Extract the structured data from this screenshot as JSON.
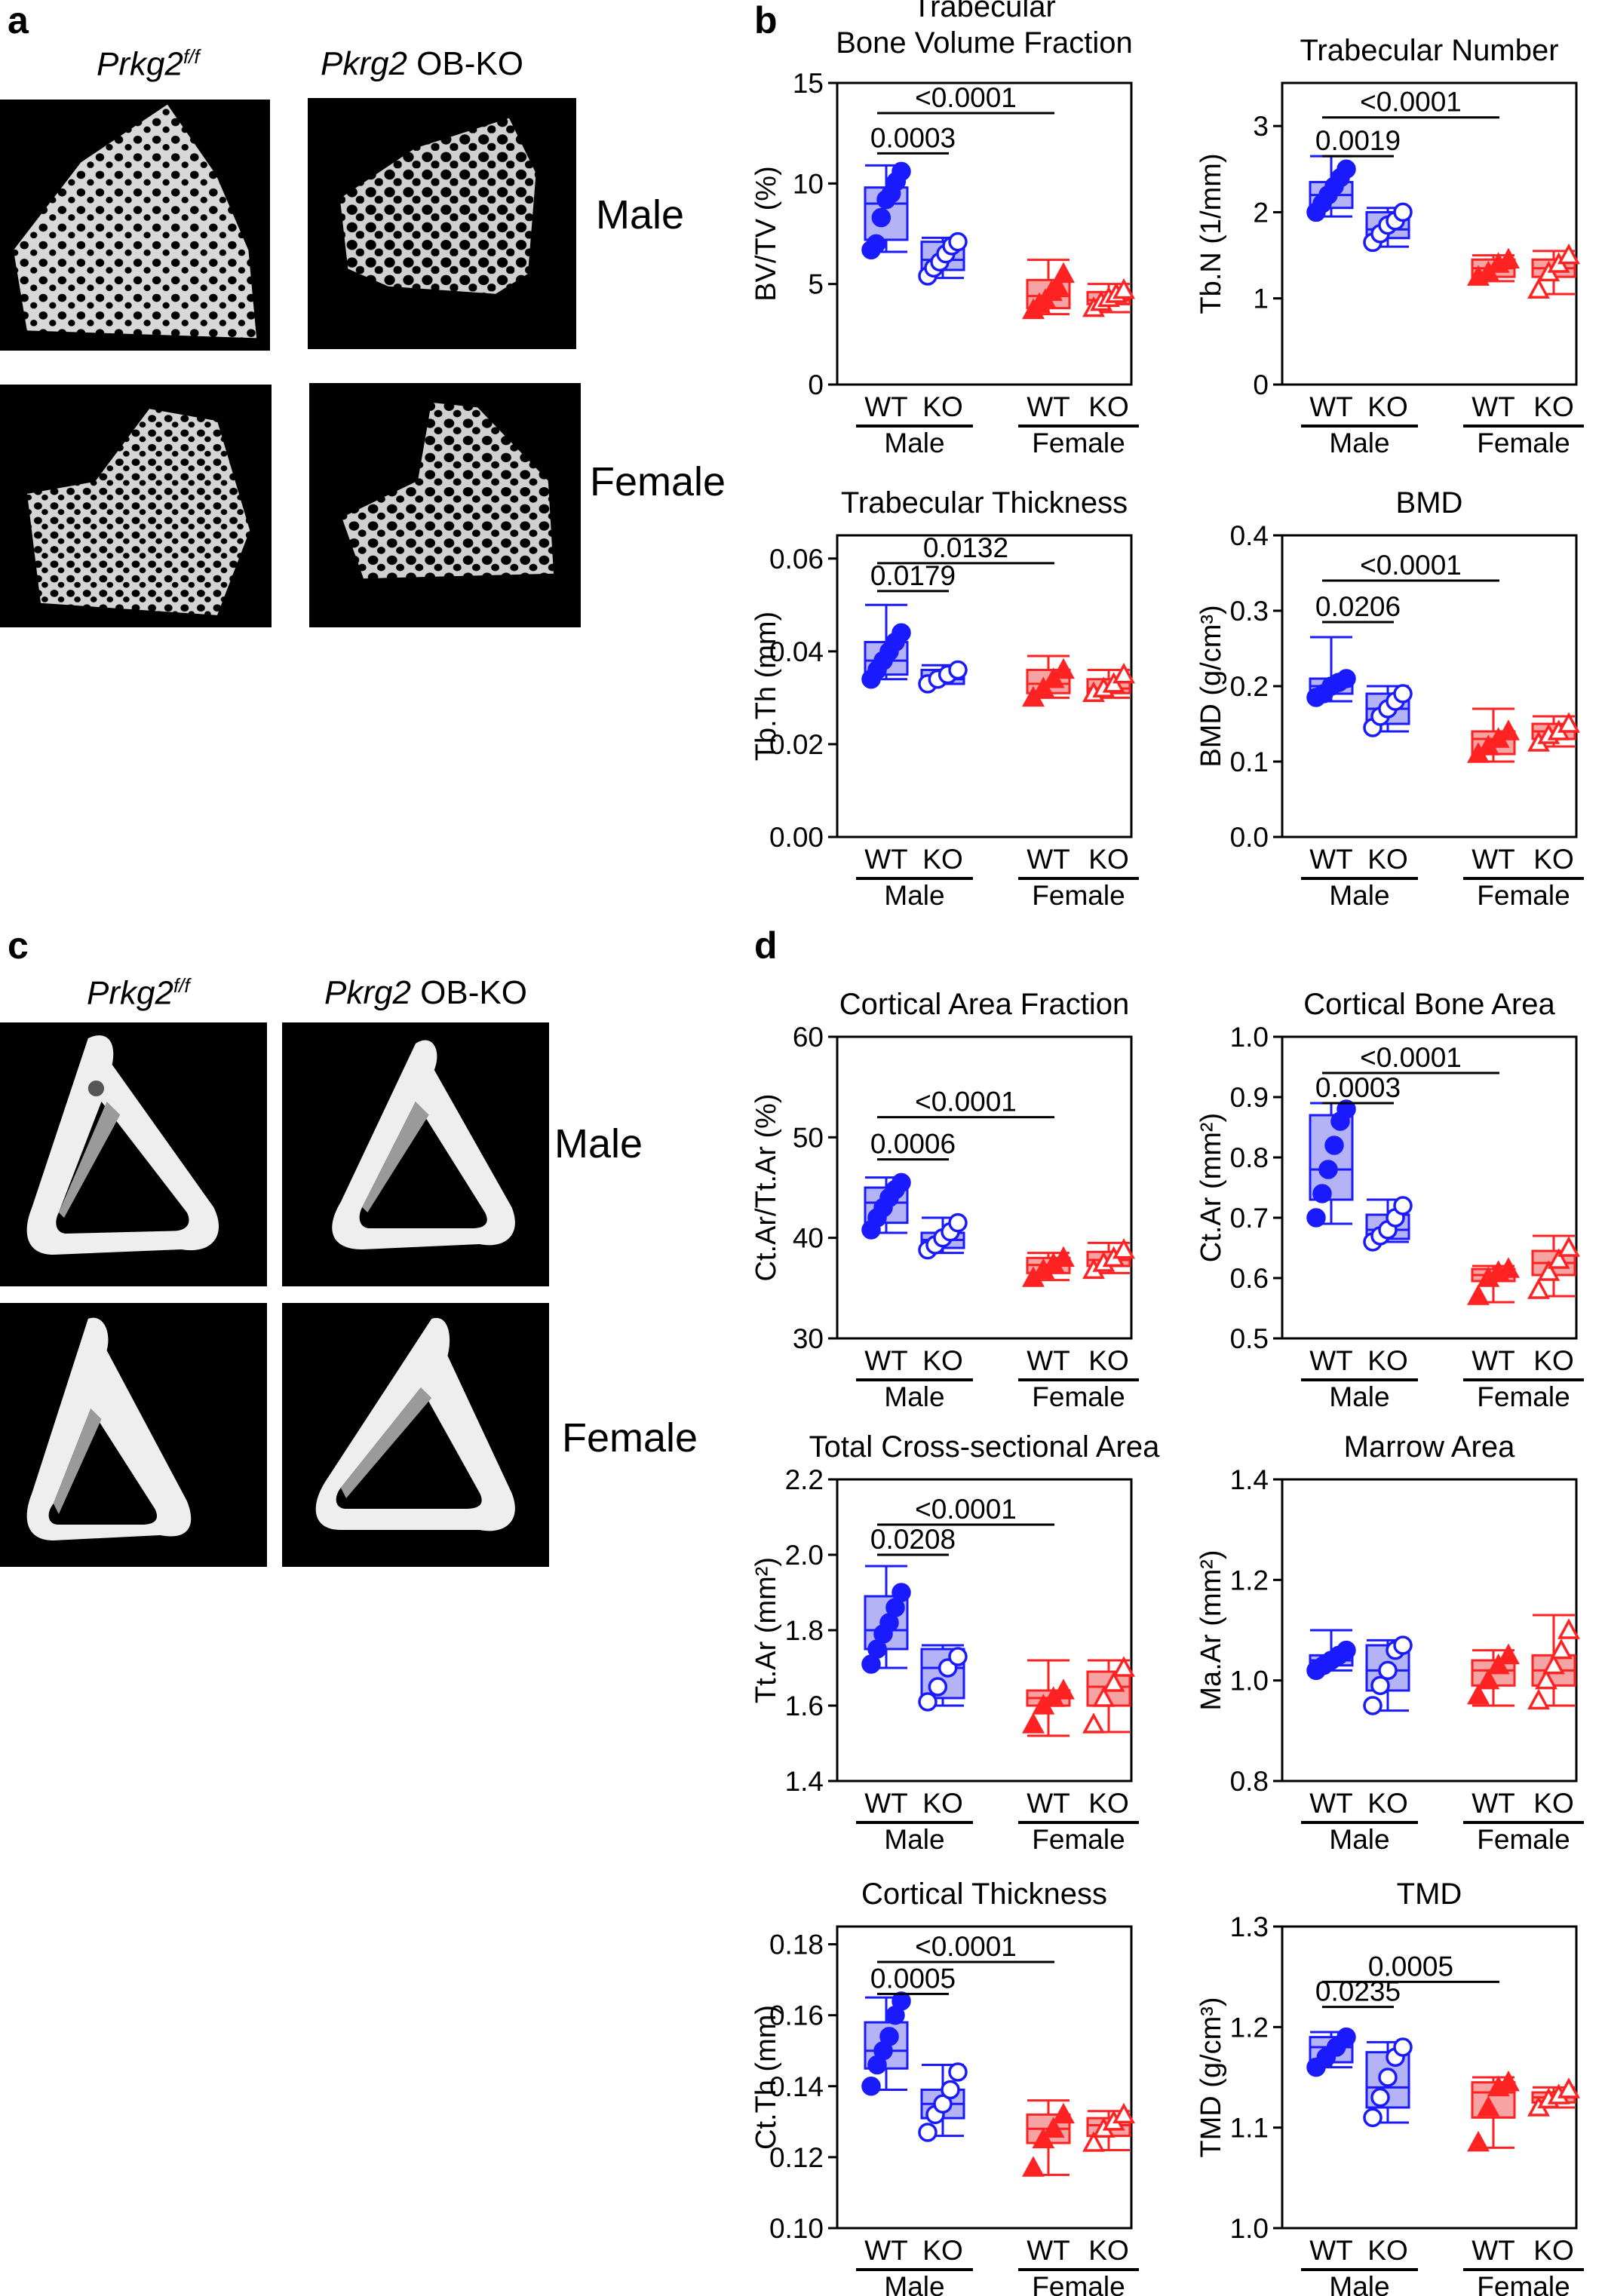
{
  "panels": {
    "a": "a",
    "b": "b",
    "c": "c",
    "d": "d"
  },
  "images": {
    "wt_label_main": "Prkg2",
    "wt_label_sup": "f/f",
    "ko_label_gene": "Pkrg2",
    "ko_label_rest": " OB-KO",
    "male": "Male",
    "female": "Female"
  },
  "groups": {
    "wt": "WT",
    "ko": "KO",
    "male": "Male",
    "female": "Female"
  },
  "colors": {
    "male": "#1a1aff",
    "male_fill": "#b3b3f5",
    "female": "#ff2222",
    "female_fill": "#f5a3a3"
  },
  "chart_data": [
    {
      "id": "bvtv",
      "type": "box",
      "title": [
        "Trabecular",
        "Bone Volume Fraction"
      ],
      "ylabel": "BV/TV (%)",
      "ylim": [
        0,
        15
      ],
      "yticks": [
        "0",
        "5",
        "10",
        "15"
      ],
      "ytick_values": [
        0,
        5,
        10,
        15
      ],
      "groups": [
        {
          "name": "Male WT",
          "min": 6.6,
          "q1": 7.2,
          "median": 9.0,
          "q3": 9.8,
          "max": 10.9,
          "points": [
            6.7,
            7.0,
            8.3,
            9.2,
            9.5,
            10.1,
            10.6
          ]
        },
        {
          "name": "Male KO",
          "min": 5.3,
          "q1": 5.7,
          "median": 6.2,
          "q3": 7.1,
          "max": 7.3,
          "points": [
            5.4,
            5.8,
            6.1,
            6.5,
            6.9,
            7.1
          ]
        },
        {
          "name": "Female WT",
          "min": 3.5,
          "q1": 3.8,
          "median": 4.4,
          "q3": 5.2,
          "max": 6.2,
          "points": [
            3.7,
            4.0,
            4.2,
            4.6,
            4.9,
            5.5
          ]
        },
        {
          "name": "Female KO",
          "min": 3.6,
          "q1": 4.0,
          "median": 4.2,
          "q3": 4.6,
          "max": 5.0,
          "points": [
            3.8,
            4.1,
            4.3,
            4.5,
            4.7
          ]
        }
      ],
      "comparisons": [
        {
          "label": "<0.0001",
          "from": 0,
          "to": 2,
          "y": 13.5
        },
        {
          "label": "0.0003",
          "from": 0,
          "to": 1,
          "y": 11.5
        }
      ]
    },
    {
      "id": "tbn",
      "type": "box",
      "title": [
        "Trabecular Number"
      ],
      "ylabel": "Tb.N (1/mm)",
      "ylim": [
        0,
        3.5
      ],
      "yticks": [
        "0",
        "1",
        "2",
        "3"
      ],
      "ytick_values": [
        0,
        1,
        2,
        3
      ],
      "groups": [
        {
          "name": "Male WT",
          "min": 1.95,
          "q1": 2.05,
          "median": 2.2,
          "q3": 2.35,
          "max": 2.65,
          "points": [
            2.0,
            2.1,
            2.2,
            2.3,
            2.4,
            2.5
          ]
        },
        {
          "name": "Male KO",
          "min": 1.6,
          "q1": 1.7,
          "median": 1.8,
          "q3": 2.0,
          "max": 2.05,
          "points": [
            1.65,
            1.75,
            1.85,
            1.9,
            2.0
          ]
        },
        {
          "name": "Female WT",
          "min": 1.2,
          "q1": 1.25,
          "median": 1.35,
          "q3": 1.45,
          "max": 1.5,
          "points": [
            1.25,
            1.3,
            1.4,
            1.45
          ]
        },
        {
          "name": "Female KO",
          "min": 1.05,
          "q1": 1.25,
          "median": 1.35,
          "q3": 1.45,
          "max": 1.55,
          "points": [
            1.1,
            1.3,
            1.4,
            1.5
          ]
        }
      ],
      "comparisons": [
        {
          "label": "<0.0001",
          "from": 0,
          "to": 2,
          "y": 3.1
        },
        {
          "label": "0.0019",
          "from": 0,
          "to": 1,
          "y": 2.65
        }
      ]
    },
    {
      "id": "tbth",
      "type": "box",
      "title": [
        "Trabecular Thickness"
      ],
      "ylabel": "Tb.Th (mm)",
      "ylim": [
        0,
        0.065
      ],
      "yticks": [
        "0.00",
        "0.02",
        "0.04",
        "0.06"
      ],
      "ytick_values": [
        0,
        0.02,
        0.04,
        0.06
      ],
      "groups": [
        {
          "name": "Male WT",
          "min": 0.034,
          "q1": 0.035,
          "median": 0.038,
          "q3": 0.042,
          "max": 0.05,
          "points": [
            0.034,
            0.036,
            0.038,
            0.04,
            0.042,
            0.044
          ]
        },
        {
          "name": "Male KO",
          "min": 0.033,
          "q1": 0.033,
          "median": 0.034,
          "q3": 0.036,
          "max": 0.037,
          "points": [
            0.033,
            0.034,
            0.035,
            0.036
          ]
        },
        {
          "name": "Female WT",
          "min": 0.03,
          "q1": 0.031,
          "median": 0.033,
          "q3": 0.036,
          "max": 0.039,
          "points": [
            0.03,
            0.032,
            0.034,
            0.036
          ]
        },
        {
          "name": "Female KO",
          "min": 0.03,
          "q1": 0.031,
          "median": 0.032,
          "q3": 0.034,
          "max": 0.036,
          "points": [
            0.031,
            0.032,
            0.033,
            0.035
          ]
        }
      ],
      "comparisons": [
        {
          "label": "0.0132",
          "from": 0,
          "to": 2,
          "y": 0.059
        },
        {
          "label": "0.0179",
          "from": 0,
          "to": 1,
          "y": 0.053
        }
      ]
    },
    {
      "id": "bmd",
      "type": "box",
      "title": [
        "BMD"
      ],
      "ylabel": "BMD (g/cm³)",
      "ylim": [
        0,
        0.4
      ],
      "yticks": [
        "0.0",
        "0.1",
        "0.2",
        "0.3",
        "0.4"
      ],
      "ytick_values": [
        0,
        0.1,
        0.2,
        0.3,
        0.4
      ],
      "groups": [
        {
          "name": "Male WT",
          "min": 0.18,
          "q1": 0.19,
          "median": 0.2,
          "q3": 0.21,
          "max": 0.265,
          "points": [
            0.185,
            0.19,
            0.2,
            0.205,
            0.21
          ]
        },
        {
          "name": "Male KO",
          "min": 0.14,
          "q1": 0.15,
          "median": 0.17,
          "q3": 0.19,
          "max": 0.2,
          "points": [
            0.145,
            0.16,
            0.17,
            0.18,
            0.19
          ]
        },
        {
          "name": "Female WT",
          "min": 0.1,
          "q1": 0.11,
          "median": 0.13,
          "q3": 0.14,
          "max": 0.17,
          "points": [
            0.11,
            0.12,
            0.13,
            0.14
          ]
        },
        {
          "name": "Female KO",
          "min": 0.12,
          "q1": 0.13,
          "median": 0.14,
          "q3": 0.15,
          "max": 0.16,
          "points": [
            0.125,
            0.135,
            0.14,
            0.15
          ]
        }
      ],
      "comparisons": [
        {
          "label": "<0.0001",
          "from": 0,
          "to": 2,
          "y": 0.34
        },
        {
          "label": "0.0206",
          "from": 0,
          "to": 1,
          "y": 0.285
        }
      ]
    },
    {
      "id": "ctarfrac",
      "type": "box",
      "title": [
        "Cortical Area Fraction"
      ],
      "ylabel": "Ct.Ar/Tt.Ar (%)",
      "ylim": [
        30,
        60
      ],
      "yticks": [
        "30",
        "40",
        "50",
        "60"
      ],
      "ytick_values": [
        30,
        40,
        50,
        60
      ],
      "groups": [
        {
          "name": "Male WT",
          "min": 40.5,
          "q1": 41.5,
          "median": 43.5,
          "q3": 45.0,
          "max": 46.0,
          "points": [
            40.8,
            42.0,
            43.0,
            44.0,
            44.8,
            45.5
          ]
        },
        {
          "name": "Male KO",
          "min": 38.5,
          "q1": 39.0,
          "median": 39.8,
          "q3": 40.5,
          "max": 42.0,
          "points": [
            38.8,
            39.3,
            40.0,
            40.6,
            41.5
          ]
        },
        {
          "name": "Female WT",
          "min": 35.8,
          "q1": 36.5,
          "median": 37.3,
          "q3": 38.0,
          "max": 38.5,
          "points": [
            36.0,
            36.8,
            37.4,
            38.0
          ]
        },
        {
          "name": "Female KO",
          "min": 36.5,
          "q1": 37.2,
          "median": 37.8,
          "q3": 38.6,
          "max": 39.5,
          "points": [
            36.8,
            37.5,
            38.0,
            38.8
          ]
        }
      ],
      "comparisons": [
        {
          "label": "<0.0001",
          "from": 0,
          "to": 2,
          "y": 52.0
        },
        {
          "label": "0.0006",
          "from": 0,
          "to": 1,
          "y": 47.8
        }
      ]
    },
    {
      "id": "ctar",
      "type": "box",
      "title": [
        "Cortical Bone Area"
      ],
      "ylabel": "Ct.Ar (mm²)",
      "ylim": [
        0.5,
        1.0
      ],
      "yticks": [
        "0.5",
        "0.6",
        "0.7",
        "0.8",
        "0.9",
        "1.0"
      ],
      "ytick_values": [
        0.5,
        0.6,
        0.7,
        0.8,
        0.9,
        1.0
      ],
      "groups": [
        {
          "name": "Male WT",
          "min": 0.69,
          "q1": 0.73,
          "median": 0.78,
          "q3": 0.87,
          "max": 0.89,
          "points": [
            0.7,
            0.74,
            0.78,
            0.82,
            0.86,
            0.88
          ]
        },
        {
          "name": "Male KO",
          "min": 0.66,
          "q1": 0.665,
          "median": 0.68,
          "q3": 0.705,
          "max": 0.73,
          "points": [
            0.66,
            0.67,
            0.68,
            0.7,
            0.72
          ]
        },
        {
          "name": "Female WT",
          "min": 0.56,
          "q1": 0.595,
          "median": 0.605,
          "q3": 0.615,
          "max": 0.62,
          "points": [
            0.57,
            0.6,
            0.61,
            0.615
          ]
        },
        {
          "name": "Female KO",
          "min": 0.57,
          "q1": 0.605,
          "median": 0.625,
          "q3": 0.645,
          "max": 0.67,
          "points": [
            0.58,
            0.61,
            0.63,
            0.65
          ]
        }
      ],
      "comparisons": [
        {
          "label": "<0.0001",
          "from": 0,
          "to": 2,
          "y": 0.94
        },
        {
          "label": "0.0003",
          "from": 0,
          "to": 1,
          "y": 0.89
        }
      ]
    },
    {
      "id": "ttar",
      "type": "box",
      "title": [
        "Total Cross-sectional Area"
      ],
      "ylabel": "Tt.Ar (mm²)",
      "ylim": [
        1.4,
        2.2
      ],
      "yticks": [
        "1.4",
        "1.6",
        "1.8",
        "2.0",
        "2.2"
      ],
      "ytick_values": [
        1.4,
        1.6,
        1.8,
        2.0,
        2.2
      ],
      "groups": [
        {
          "name": "Male WT",
          "min": 1.7,
          "q1": 1.75,
          "median": 1.8,
          "q3": 1.89,
          "max": 1.97,
          "points": [
            1.71,
            1.75,
            1.79,
            1.82,
            1.86,
            1.9
          ]
        },
        {
          "name": "Male KO",
          "min": 1.6,
          "q1": 1.62,
          "median": 1.7,
          "q3": 1.75,
          "max": 1.76,
          "points": [
            1.61,
            1.65,
            1.7,
            1.73
          ]
        },
        {
          "name": "Female WT",
          "min": 1.52,
          "q1": 1.6,
          "median": 1.62,
          "q3": 1.64,
          "max": 1.72,
          "points": [
            1.55,
            1.6,
            1.62,
            1.64
          ]
        },
        {
          "name": "Female KO",
          "min": 1.53,
          "q1": 1.6,
          "median": 1.65,
          "q3": 1.69,
          "max": 1.72,
          "points": [
            1.55,
            1.62,
            1.66,
            1.7
          ]
        }
      ],
      "comparisons": [
        {
          "label": "<0.0001",
          "from": 0,
          "to": 2,
          "y": 2.08
        },
        {
          "label": "0.0208",
          "from": 0,
          "to": 1,
          "y": 2.0
        }
      ]
    },
    {
      "id": "maar",
      "type": "box",
      "title": [
        "Marrow Area"
      ],
      "ylabel": "Ma.Ar (mm²)",
      "ylim": [
        0.8,
        1.4
      ],
      "yticks": [
        "0.8",
        "1.0",
        "1.2",
        "1.4"
      ],
      "ytick_values": [
        0.8,
        1.0,
        1.2,
        1.4
      ],
      "groups": [
        {
          "name": "Male WT",
          "min": 1.02,
          "q1": 1.03,
          "median": 1.04,
          "q3": 1.05,
          "max": 1.1,
          "points": [
            1.02,
            1.03,
            1.04,
            1.05,
            1.06
          ]
        },
        {
          "name": "Male KO",
          "min": 0.94,
          "q1": 0.98,
          "median": 1.02,
          "q3": 1.07,
          "max": 1.08,
          "points": [
            0.95,
            0.99,
            1.02,
            1.06,
            1.07
          ]
        },
        {
          "name": "Female WT",
          "min": 0.95,
          "q1": 0.99,
          "median": 1.02,
          "q3": 1.04,
          "max": 1.06,
          "points": [
            0.97,
            1.0,
            1.03,
            1.05
          ]
        },
        {
          "name": "Female KO",
          "min": 0.95,
          "q1": 0.99,
          "median": 1.02,
          "q3": 1.05,
          "max": 1.13,
          "points": [
            0.96,
            1.0,
            1.03,
            1.06,
            1.1
          ]
        }
      ],
      "comparisons": []
    },
    {
      "id": "ctth",
      "type": "box",
      "title": [
        "Cortical Thickness"
      ],
      "ylabel": "Ct.Th (mm)",
      "ylim": [
        0.1,
        0.185
      ],
      "yticks": [
        "0.10",
        "0.12",
        "0.14",
        "0.16",
        "0.18"
      ],
      "ytick_values": [
        0.1,
        0.12,
        0.14,
        0.16,
        0.18
      ],
      "groups": [
        {
          "name": "Male WT",
          "min": 0.139,
          "q1": 0.145,
          "median": 0.15,
          "q3": 0.158,
          "max": 0.165,
          "points": [
            0.14,
            0.146,
            0.15,
            0.154,
            0.16,
            0.164
          ]
        },
        {
          "name": "Male KO",
          "min": 0.126,
          "q1": 0.131,
          "median": 0.135,
          "q3": 0.139,
          "max": 0.146,
          "points": [
            0.127,
            0.132,
            0.135,
            0.139,
            0.144
          ]
        },
        {
          "name": "Female WT",
          "min": 0.115,
          "q1": 0.124,
          "median": 0.128,
          "q3": 0.132,
          "max": 0.136,
          "points": [
            0.117,
            0.125,
            0.128,
            0.132
          ]
        },
        {
          "name": "Female KO",
          "min": 0.122,
          "q1": 0.126,
          "median": 0.129,
          "q3": 0.131,
          "max": 0.133,
          "points": [
            0.124,
            0.128,
            0.13,
            0.132
          ]
        }
      ],
      "comparisons": [
        {
          "label": "<0.0001",
          "from": 0,
          "to": 2,
          "y": 0.175
        },
        {
          "label": "0.0005",
          "from": 0,
          "to": 1,
          "y": 0.166
        }
      ]
    },
    {
      "id": "tmd",
      "type": "box",
      "title": [
        "TMD"
      ],
      "ylabel": "TMD (g/cm³)",
      "ylim": [
        1.0,
        1.3
      ],
      "yticks": [
        "1.0",
        "1.1",
        "1.2",
        "1.3"
      ],
      "ytick_values": [
        1.0,
        1.1,
        1.2,
        1.3
      ],
      "groups": [
        {
          "name": "Male WT",
          "min": 1.16,
          "q1": 1.165,
          "median": 1.18,
          "q3": 1.19,
          "max": 1.195,
          "points": [
            1.16,
            1.17,
            1.18,
            1.19
          ]
        },
        {
          "name": "Male KO",
          "min": 1.105,
          "q1": 1.12,
          "median": 1.14,
          "q3": 1.175,
          "max": 1.185,
          "points": [
            1.11,
            1.13,
            1.15,
            1.17,
            1.18
          ]
        },
        {
          "name": "Female WT",
          "min": 1.08,
          "q1": 1.11,
          "median": 1.135,
          "q3": 1.145,
          "max": 1.15,
          "points": [
            1.085,
            1.12,
            1.14,
            1.145
          ]
        },
        {
          "name": "Female KO",
          "min": 1.12,
          "q1": 1.125,
          "median": 1.13,
          "q3": 1.135,
          "max": 1.14,
          "points": [
            1.12,
            1.128,
            1.132,
            1.138
          ]
        }
      ],
      "comparisons": [
        {
          "label": "0.0005",
          "from": 0,
          "to": 2,
          "y": 1.245
        },
        {
          "label": "0.0235",
          "from": 0,
          "to": 1,
          "y": 1.22
        }
      ]
    }
  ]
}
